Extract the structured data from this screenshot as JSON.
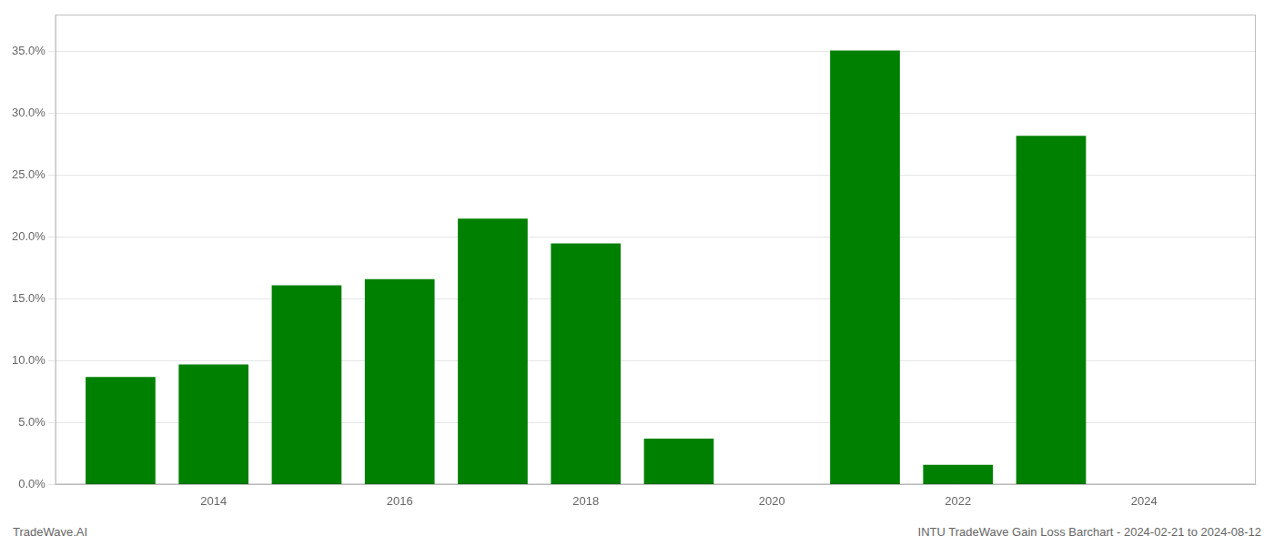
{
  "chart_data": {
    "type": "bar",
    "x": [
      2013,
      2014,
      2015,
      2016,
      2017,
      2018,
      2019,
      2021,
      2022,
      2023
    ],
    "values": [
      0.087,
      0.097,
      0.161,
      0.166,
      0.215,
      0.195,
      0.037,
      0.351,
      0.016,
      0.282
    ],
    "color": "#008000",
    "xlim": [
      2012.3,
      2025.2
    ],
    "xticks": [
      2014,
      2016,
      2018,
      2020,
      2022,
      2024
    ],
    "ylim": [
      0.0,
      0.38
    ],
    "yticks": [
      {
        "value": 0.0,
        "label": "0.0%"
      },
      {
        "value": 0.05,
        "label": "5.0%"
      },
      {
        "value": 0.1,
        "label": "10.0%"
      },
      {
        "value": 0.15,
        "label": "15.0%"
      },
      {
        "value": 0.2,
        "label": "20.0%"
      },
      {
        "value": 0.25,
        "label": "25.0%"
      },
      {
        "value": 0.3,
        "label": "30.0%"
      },
      {
        "value": 0.35,
        "label": "35.0%"
      }
    ],
    "grid": true,
    "annotations": [
      "TradeWave.AI",
      "INTU TradeWave Gain Loss Barchart - 2024-02-21 to 2024-08-12"
    ]
  }
}
